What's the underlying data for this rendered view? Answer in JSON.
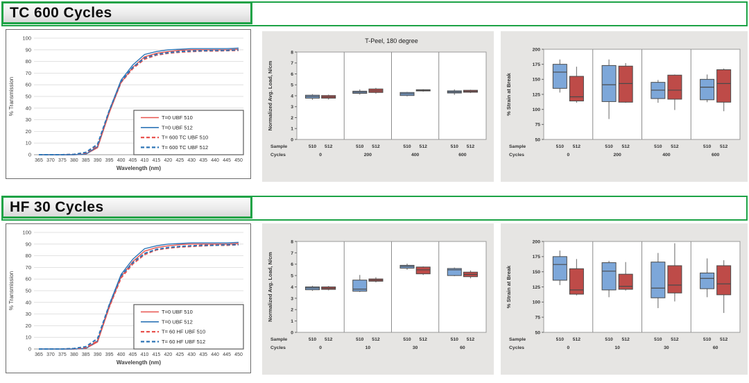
{
  "colors": {
    "green": "#1ca346",
    "red_line": "#e8534f",
    "blue_line": "#2e75b6",
    "box_blue": "#7da7d9",
    "box_red": "#be4b48",
    "box_stroke": "#4a4a4a",
    "whisker": "#7f7f7f",
    "grid": "#d9d9d9",
    "chart_bg_gray": "#e6e5e3"
  },
  "sections": [
    {
      "header": "TC 600 Cycles"
    },
    {
      "header": "HF 30 Cycles"
    }
  ],
  "chart_data": [
    {
      "id": "transmission-tc",
      "type": "line",
      "section": "TC 600 Cycles",
      "xlabel": "Wavelength (nm)",
      "ylabel": "% Transmission",
      "ylim": [
        0,
        100
      ],
      "yticks": [
        0,
        10,
        20,
        30,
        40,
        50,
        60,
        70,
        80,
        90,
        100
      ],
      "x": [
        365,
        370,
        375,
        380,
        385,
        390,
        395,
        400,
        405,
        410,
        415,
        420,
        425,
        430,
        435,
        440,
        445,
        450
      ],
      "grid": true,
      "legend_position": "inside lower right",
      "series": [
        {
          "name": "T=0 UBF 510",
          "color": "red",
          "dash": false,
          "values": [
            0,
            0,
            0,
            0,
            0.5,
            6,
            36,
            62,
            75,
            84,
            87,
            88.5,
            89.5,
            90,
            90,
            90,
            90,
            90.5
          ]
        },
        {
          "name": "T=0 UBF 512",
          "color": "blue",
          "dash": false,
          "values": [
            0,
            0,
            0,
            0,
            0.5,
            7,
            38,
            64,
            77,
            86,
            88.5,
            90,
            90.5,
            91,
            91,
            91,
            91,
            91.5
          ]
        },
        {
          "name": "T= 600 TC UBF 510",
          "color": "red",
          "dash": true,
          "values": [
            0,
            0,
            0,
            0.3,
            1.5,
            8,
            37,
            62,
            74,
            82,
            85.5,
            87,
            88,
            88.5,
            89,
            89,
            89.3,
            89.5
          ]
        },
        {
          "name": "T= 600 TC UBF 512",
          "color": "blue",
          "dash": true,
          "values": [
            0,
            0,
            0,
            0.3,
            2,
            9,
            38,
            63,
            75,
            83,
            86,
            87.5,
            88.5,
            89,
            89.3,
            89.5,
            89.5,
            90
          ]
        }
      ]
    },
    {
      "id": "tpeel-tc",
      "type": "boxplot",
      "section": "TC 600 Cycles",
      "title": "T-Peel, 180 degree",
      "ylabel": "Normalized Avg. Load, N/cm",
      "ylim": [
        0,
        8
      ],
      "yticks": [
        0,
        1,
        2,
        3,
        4,
        5,
        6,
        7,
        8
      ],
      "row_labels": [
        "Sample",
        "Cycles"
      ],
      "groups": [
        {
          "cycles": "0",
          "boxes": [
            {
              "sample": "510",
              "color": "blue",
              "whislo": 3.62,
              "q1": 3.78,
              "med": 3.93,
              "q3": 4.05,
              "whishi": 4.15
            },
            {
              "sample": "512",
              "color": "red",
              "whislo": 3.65,
              "q1": 3.78,
              "med": 3.9,
              "q3": 4.02,
              "whishi": 4.1
            }
          ]
        },
        {
          "cycles": "200",
          "boxes": [
            {
              "sample": "510",
              "color": "blue",
              "whislo": 4.1,
              "q1": 4.22,
              "med": 4.32,
              "q3": 4.42,
              "whishi": 4.58
            },
            {
              "sample": "512",
              "color": "red",
              "whislo": 4.2,
              "q1": 4.3,
              "med": 4.45,
              "q3": 4.62,
              "whishi": 4.72
            }
          ]
        },
        {
          "cycles": "400",
          "boxes": [
            {
              "sample": "510",
              "color": "blue",
              "whislo": 3.95,
              "q1": 4.02,
              "med": 4.18,
              "q3": 4.3,
              "whishi": 4.35
            },
            {
              "sample": "512",
              "color": "red",
              "whislo": 4.38,
              "q1": 4.44,
              "med": 4.5,
              "q3": 4.55,
              "whishi": 4.6
            }
          ]
        },
        {
          "cycles": "600",
          "boxes": [
            {
              "sample": "510",
              "color": "blue",
              "whislo": 4.08,
              "q1": 4.25,
              "med": 4.35,
              "q3": 4.45,
              "whishi": 4.58
            },
            {
              "sample": "512",
              "color": "red",
              "whislo": 4.25,
              "q1": 4.32,
              "med": 4.4,
              "q3": 4.5,
              "whishi": 4.55
            }
          ]
        }
      ]
    },
    {
      "id": "strain-tc",
      "type": "boxplot",
      "section": "TC 600 Cycles",
      "title": "",
      "ylabel": "% Strain at Break",
      "ylim": [
        50,
        200
      ],
      "yticks": [
        50,
        75,
        100,
        125,
        150,
        175,
        200
      ],
      "row_labels": [
        "Sample",
        "Cycles"
      ],
      "groups": [
        {
          "cycles": "0",
          "boxes": [
            {
              "sample": "510",
              "color": "blue",
              "whislo": 128,
              "q1": 135,
              "med": 162,
              "q3": 175,
              "whishi": 183
            },
            {
              "sample": "512",
              "color": "red",
              "whislo": 111,
              "q1": 114,
              "med": 121,
              "q3": 155,
              "whishi": 171
            }
          ]
        },
        {
          "cycles": "200",
          "boxes": [
            {
              "sample": "510",
              "color": "blue",
              "whislo": 84,
              "q1": 113,
              "med": 141,
              "q3": 173,
              "whishi": 183
            },
            {
              "sample": "512",
              "color": "red",
              "whislo": 111,
              "q1": 112,
              "med": 143,
              "q3": 172,
              "whishi": 177
            }
          ]
        },
        {
          "cycles": "400",
          "boxes": [
            {
              "sample": "510",
              "color": "blue",
              "whislo": 111,
              "q1": 118,
              "med": 132,
              "q3": 145,
              "whishi": 149
            },
            {
              "sample": "512",
              "color": "red",
              "whislo": 99,
              "q1": 117,
              "med": 132,
              "q3": 157,
              "whishi": 158
            }
          ]
        },
        {
          "cycles": "600",
          "boxes": [
            {
              "sample": "510",
              "color": "blue",
              "whislo": 112,
              "q1": 116,
              "med": 137,
              "q3": 150,
              "whishi": 158
            },
            {
              "sample": "512",
              "color": "red",
              "whislo": 97,
              "q1": 112,
              "med": 143,
              "q3": 166,
              "whishi": 168
            }
          ]
        }
      ]
    },
    {
      "id": "transmission-hf",
      "type": "line",
      "section": "HF 30 Cycles",
      "xlabel": "Wavelength (nm)",
      "ylabel": "% Transmission",
      "ylim": [
        0,
        100
      ],
      "yticks": [
        0,
        10,
        20,
        30,
        40,
        50,
        60,
        70,
        80,
        90,
        100
      ],
      "x": [
        365,
        370,
        375,
        380,
        385,
        390,
        395,
        400,
        405,
        410,
        415,
        420,
        425,
        430,
        435,
        440,
        445,
        450
      ],
      "grid": true,
      "legend_position": "inside lower right",
      "series": [
        {
          "name": "T=0 UBF 510",
          "color": "red",
          "dash": false,
          "values": [
            0,
            0,
            0,
            0,
            0.5,
            6,
            36,
            62,
            75,
            84,
            87,
            88.5,
            89.5,
            90,
            90,
            90,
            90,
            90.5
          ]
        },
        {
          "name": "T=0 UBF 512",
          "color": "blue",
          "dash": false,
          "values": [
            0,
            0,
            0,
            0,
            0.5,
            7,
            38,
            64,
            77,
            86,
            88.5,
            90,
            90.5,
            91,
            91,
            91,
            91,
            91.5
          ]
        },
        {
          "name": "T= 60 HF UBF 510",
          "color": "red",
          "dash": true,
          "values": [
            0,
            0,
            0,
            0.3,
            1,
            7,
            36,
            61,
            73,
            81,
            85,
            86.5,
            87.5,
            88,
            88.5,
            89,
            89,
            89.5
          ]
        },
        {
          "name": "T= 60 HF UBF 512",
          "color": "blue",
          "dash": true,
          "values": [
            0,
            0,
            0,
            0.5,
            2,
            9,
            38,
            63,
            74,
            82,
            85.5,
            87,
            88,
            88.5,
            89,
            89,
            89.5,
            89.5
          ]
        }
      ]
    },
    {
      "id": "tpeel-hf",
      "type": "boxplot",
      "section": "HF 30 Cycles",
      "title": "",
      "ylabel": "Normalized Avg. Load, N/cm",
      "ylim": [
        0,
        8
      ],
      "yticks": [
        0,
        1,
        2,
        3,
        4,
        5,
        6,
        7,
        8
      ],
      "row_labels": [
        "Sample",
        "Cycles"
      ],
      "groups": [
        {
          "cycles": "0",
          "boxes": [
            {
              "sample": "510",
              "color": "blue",
              "whislo": 3.65,
              "q1": 3.75,
              "med": 3.9,
              "q3": 4.0,
              "whishi": 4.1
            },
            {
              "sample": "512",
              "color": "red",
              "whislo": 3.7,
              "q1": 3.78,
              "med": 3.88,
              "q3": 4.0,
              "whishi": 4.08
            }
          ]
        },
        {
          "cycles": "10",
          "boxes": [
            {
              "sample": "510",
              "color": "blue",
              "whislo": 3.55,
              "q1": 3.62,
              "med": 3.8,
              "q3": 4.6,
              "whishi": 5.05
            },
            {
              "sample": "512",
              "color": "red",
              "whislo": 4.4,
              "q1": 4.5,
              "med": 4.6,
              "q3": 4.7,
              "whishi": 4.85
            }
          ]
        },
        {
          "cycles": "30",
          "boxes": [
            {
              "sample": "510",
              "color": "blue",
              "whislo": 5.5,
              "q1": 5.65,
              "med": 5.8,
              "q3": 5.9,
              "whishi": 6.05
            },
            {
              "sample": "512",
              "color": "red",
              "whislo": 5.05,
              "q1": 5.15,
              "med": 5.5,
              "q3": 5.75,
              "whishi": 5.8
            }
          ]
        },
        {
          "cycles": "60",
          "boxes": [
            {
              "sample": "510",
              "color": "blue",
              "whislo": 4.95,
              "q1": 5.0,
              "med": 5.5,
              "q3": 5.62,
              "whishi": 5.7
            },
            {
              "sample": "512",
              "color": "red",
              "whislo": 4.75,
              "q1": 4.9,
              "med": 5.1,
              "q3": 5.3,
              "whishi": 5.45
            }
          ]
        }
      ]
    },
    {
      "id": "strain-hf",
      "type": "boxplot",
      "section": "HF 30 Cycles",
      "title": "",
      "ylabel": "% Strain at Break",
      "ylim": [
        50,
        200
      ],
      "yticks": [
        50,
        75,
        100,
        125,
        150,
        175,
        200
      ],
      "row_labels": [
        "Sample",
        "Cycles"
      ],
      "groups": [
        {
          "cycles": "0",
          "boxes": [
            {
              "sample": "510",
              "color": "blue",
              "whislo": 128,
              "q1": 136,
              "med": 162,
              "q3": 175,
              "whishi": 185
            },
            {
              "sample": "512",
              "color": "red",
              "whislo": 111,
              "q1": 113,
              "med": 120,
              "q3": 155,
              "whishi": 171
            }
          ]
        },
        {
          "cycles": "10",
          "boxes": [
            {
              "sample": "510",
              "color": "blue",
              "whislo": 108,
              "q1": 120,
              "med": 151,
              "q3": 165,
              "whishi": 168
            },
            {
              "sample": "512",
              "color": "red",
              "whislo": 119,
              "q1": 121,
              "med": 126,
              "q3": 146,
              "whishi": 166
            }
          ]
        },
        {
          "cycles": "30",
          "boxes": [
            {
              "sample": "510",
              "color": "blue",
              "whislo": 90,
              "q1": 107,
              "med": 123,
              "q3": 166,
              "whishi": 181
            },
            {
              "sample": "512",
              "color": "red",
              "whislo": 101,
              "q1": 115,
              "med": 128,
              "q3": 160,
              "whishi": 197
            }
          ]
        },
        {
          "cycles": "60",
          "boxes": [
            {
              "sample": "510",
              "color": "blue",
              "whislo": 108,
              "q1": 122,
              "med": 139,
              "q3": 148,
              "whishi": 172
            },
            {
              "sample": "512",
              "color": "red",
              "whislo": 82,
              "q1": 112,
              "med": 130,
              "q3": 160,
              "whishi": 169
            }
          ]
        }
      ]
    }
  ]
}
